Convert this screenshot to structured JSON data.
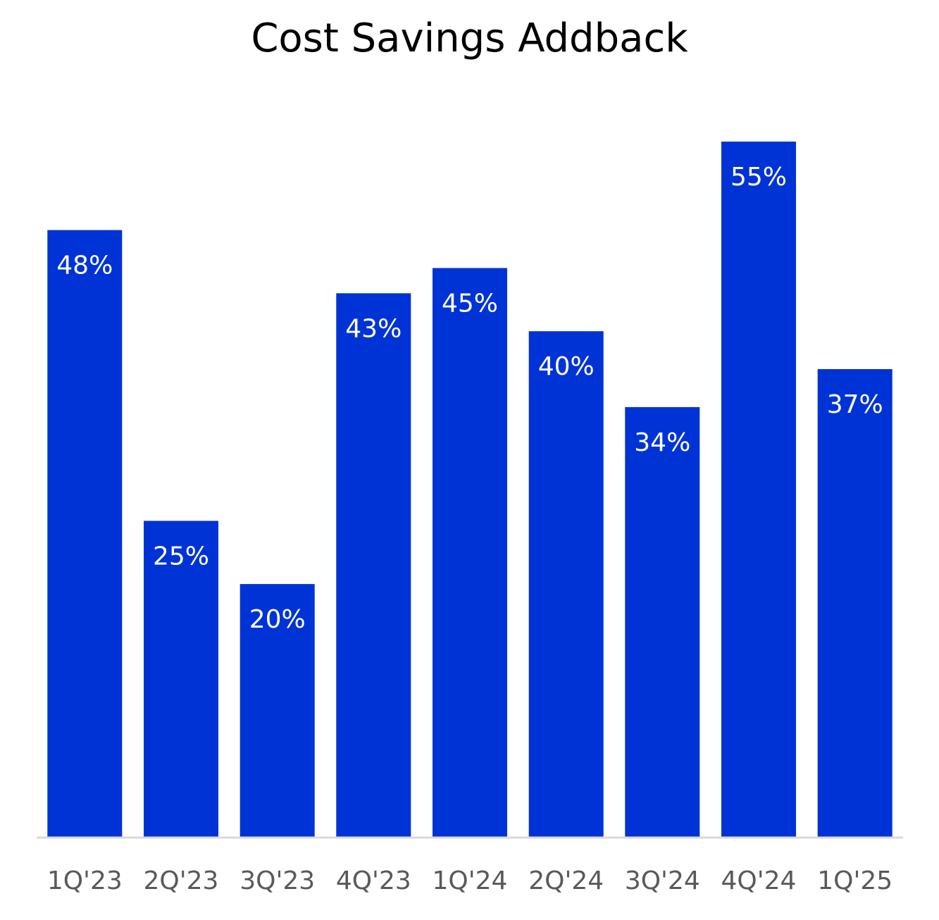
{
  "chart_data": {
    "type": "bar",
    "title": "Cost Savings Addback",
    "xlabel": "",
    "ylabel": "",
    "categories": [
      "1Q'23",
      "2Q'23",
      "3Q'23",
      "4Q'23",
      "1Q'24",
      "2Q'24",
      "3Q'24",
      "4Q'24",
      "1Q'25"
    ],
    "values": [
      48,
      25,
      20,
      43,
      45,
      40,
      34,
      55,
      37
    ],
    "data_labels": [
      "48%",
      "25%",
      "20%",
      "43%",
      "45%",
      "40%",
      "34%",
      "55%",
      "37%"
    ],
    "value_unit": "%",
    "ylim": [
      0,
      55
    ],
    "grid": false,
    "legend": "none",
    "bar_color": "#0033D6",
    "axis_color": "#D9D9D9",
    "tick_label_color": "#595959"
  }
}
